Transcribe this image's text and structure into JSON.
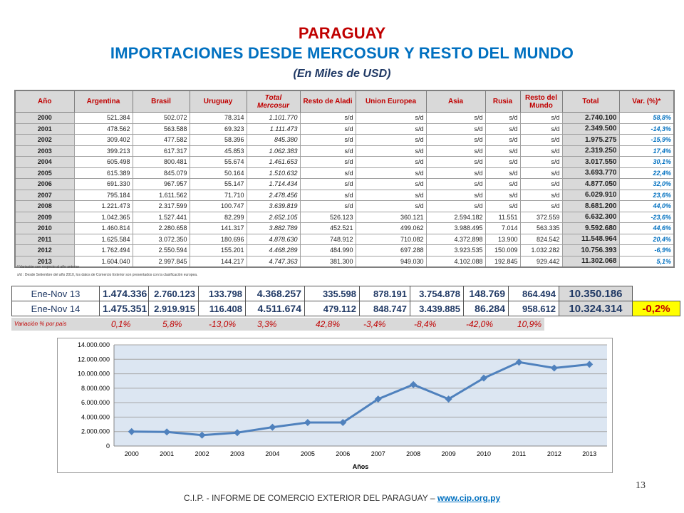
{
  "title": {
    "country": "PARAGUAY",
    "main": "IMPORTACIONES DESDE MERCOSUR Y RESTO DEL MUNDO",
    "units": "(En Miles de USD)"
  },
  "table": {
    "headers": [
      "Año",
      "Argentina",
      "Brasil",
      "Uruguay",
      "Total Mercosur",
      "Resto de Aladi",
      "Union Europea",
      "Asia",
      "Rusia",
      "Resto del Mundo",
      "Total",
      "Var. (%)*"
    ],
    "rows": [
      [
        "2000",
        "521.384",
        "502.072",
        "78.314",
        "1.101.770",
        "s/d",
        "s/d",
        "s/d",
        "s/d",
        "s/d",
        "2.740.100",
        "58,8%"
      ],
      [
        "2001",
        "478.562",
        "563.588",
        "69.323",
        "1.111.473",
        "s/d",
        "s/d",
        "s/d",
        "s/d",
        "s/d",
        "2.349.500",
        "-14,3%"
      ],
      [
        "2002",
        "309.402",
        "477.582",
        "58.396",
        "845.380",
        "s/d",
        "s/d",
        "s/d",
        "s/d",
        "s/d",
        "1.975.275",
        "-15,9%"
      ],
      [
        "2003",
        "399.213",
        "617.317",
        "45.853",
        "1.062.383",
        "s/d",
        "s/d",
        "s/d",
        "s/d",
        "s/d",
        "2.319.250",
        "17,4%"
      ],
      [
        "2004",
        "605.498",
        "800.481",
        "55.674",
        "1.461.653",
        "s/d",
        "s/d",
        "s/d",
        "s/d",
        "s/d",
        "3.017.550",
        "30,1%"
      ],
      [
        "2005",
        "615.389",
        "845.079",
        "50.164",
        "1.510.632",
        "s/d",
        "s/d",
        "s/d",
        "s/d",
        "s/d",
        "3.693.770",
        "22,4%"
      ],
      [
        "2006",
        "691.330",
        "967.957",
        "55.147",
        "1.714.434",
        "s/d",
        "s/d",
        "s/d",
        "s/d",
        "s/d",
        "4.877.050",
        "32,0%"
      ],
      [
        "2007",
        "795.184",
        "1.611.562",
        "71.710",
        "2.478.456",
        "s/d",
        "s/d",
        "s/d",
        "s/d",
        "s/d",
        "6.029.910",
        "23,6%"
      ],
      [
        "2008",
        "1.221.473",
        "2.317.599",
        "100.747",
        "3.639.819",
        "s/d",
        "s/d",
        "s/d",
        "s/d",
        "s/d",
        "8.681.200",
        "44,0%"
      ],
      [
        "2009",
        "1.042.365",
        "1.527.441",
        "82.299",
        "2.652.105",
        "526.123",
        "360.121",
        "2.594.182",
        "11.551",
        "372.559",
        "6.632.300",
        "-23,6%"
      ],
      [
        "2010",
        "1.460.814",
        "2.280.658",
        "141.317",
        "3.882.789",
        "452.521",
        "499.062",
        "3.988.495",
        "7.014",
        "563.335",
        "9.592.680",
        "44,6%"
      ],
      [
        "2011",
        "1.625.584",
        "3.072.350",
        "180.696",
        "4.878.630",
        "748.912",
        "710.082",
        "4.372.898",
        "13.900",
        "824.542",
        "11.548.964",
        "20,4%"
      ],
      [
        "2012",
        "1.762.494",
        "2.550.594",
        "155.201",
        "4.468.289",
        "484.990",
        "697.288",
        "3.923.535",
        "150.009",
        "1.032.282",
        "10.756.393",
        "-6,9%"
      ],
      [
        "2013",
        "1.604.040",
        "2.997.845",
        "144.217",
        "4.747.363",
        "381.300",
        "949.030",
        "4.102.088",
        "192.845",
        "929.442",
        "11.302.068",
        "5,1%"
      ]
    ]
  },
  "notes": {
    "n1": "* Variación con respecto al año anterior",
    "n2": "s/d : Desde Setiembre del año 2010, los datos de Comercio Exterior son presentados con la clasificación europea."
  },
  "ene_nov": {
    "rows": [
      [
        "Ene-Nov 13",
        "1.474.336",
        "2.760.123",
        "133.798",
        "4.368.257",
        "335.598",
        "878.191",
        "3.754.878",
        "148.769",
        "864.494",
        "10.350.186",
        ""
      ],
      [
        "Ene-Nov 14",
        "1.475.351",
        "2.919.915",
        "116.408",
        "4.511.674",
        "479.112",
        "848.747",
        "3.439.885",
        "86.284",
        "958.612",
        "10.324.314",
        "-0,2%"
      ]
    ],
    "variation_label": "Variación % por país",
    "variations": [
      "0,1%",
      "5,8%",
      "-13,0%",
      "3,3%",
      "42,8%",
      "-3,4%",
      "-8,4%",
      "-42,0%",
      "10,9%"
    ]
  },
  "chart_data": {
    "type": "line",
    "x": [
      "2000",
      "2001",
      "2002",
      "2003",
      "2004",
      "2005",
      "2006",
      "2007",
      "2008",
      "2009",
      "2010",
      "2011",
      "2012",
      "2013"
    ],
    "series": [
      {
        "values": [
          2000000,
          1950000,
          1500000,
          1850000,
          2600000,
          3250000,
          3250000,
          6500000,
          8500000,
          6500000,
          9400000,
          11600000,
          10800000,
          11300000
        ]
      }
    ],
    "y_ticks": [
      "0",
      "2.000.000",
      "4.000.000",
      "6.000.000",
      "8.000.000",
      "10.000.000",
      "12.000.000",
      "14.000.000"
    ],
    "ylim": [
      0,
      14000000
    ],
    "xlabel": "Años",
    "ylabel": "",
    "grid": true,
    "colors": {
      "line": "#4f81bd",
      "plot_bg": "#dce6f2"
    }
  },
  "footer": {
    "text": "C.I.P. - INFORME DE COMERCIO EXTERIOR DEL PARAGUAY – ",
    "link": "www.cip.org.py"
  },
  "page_number": "13"
}
